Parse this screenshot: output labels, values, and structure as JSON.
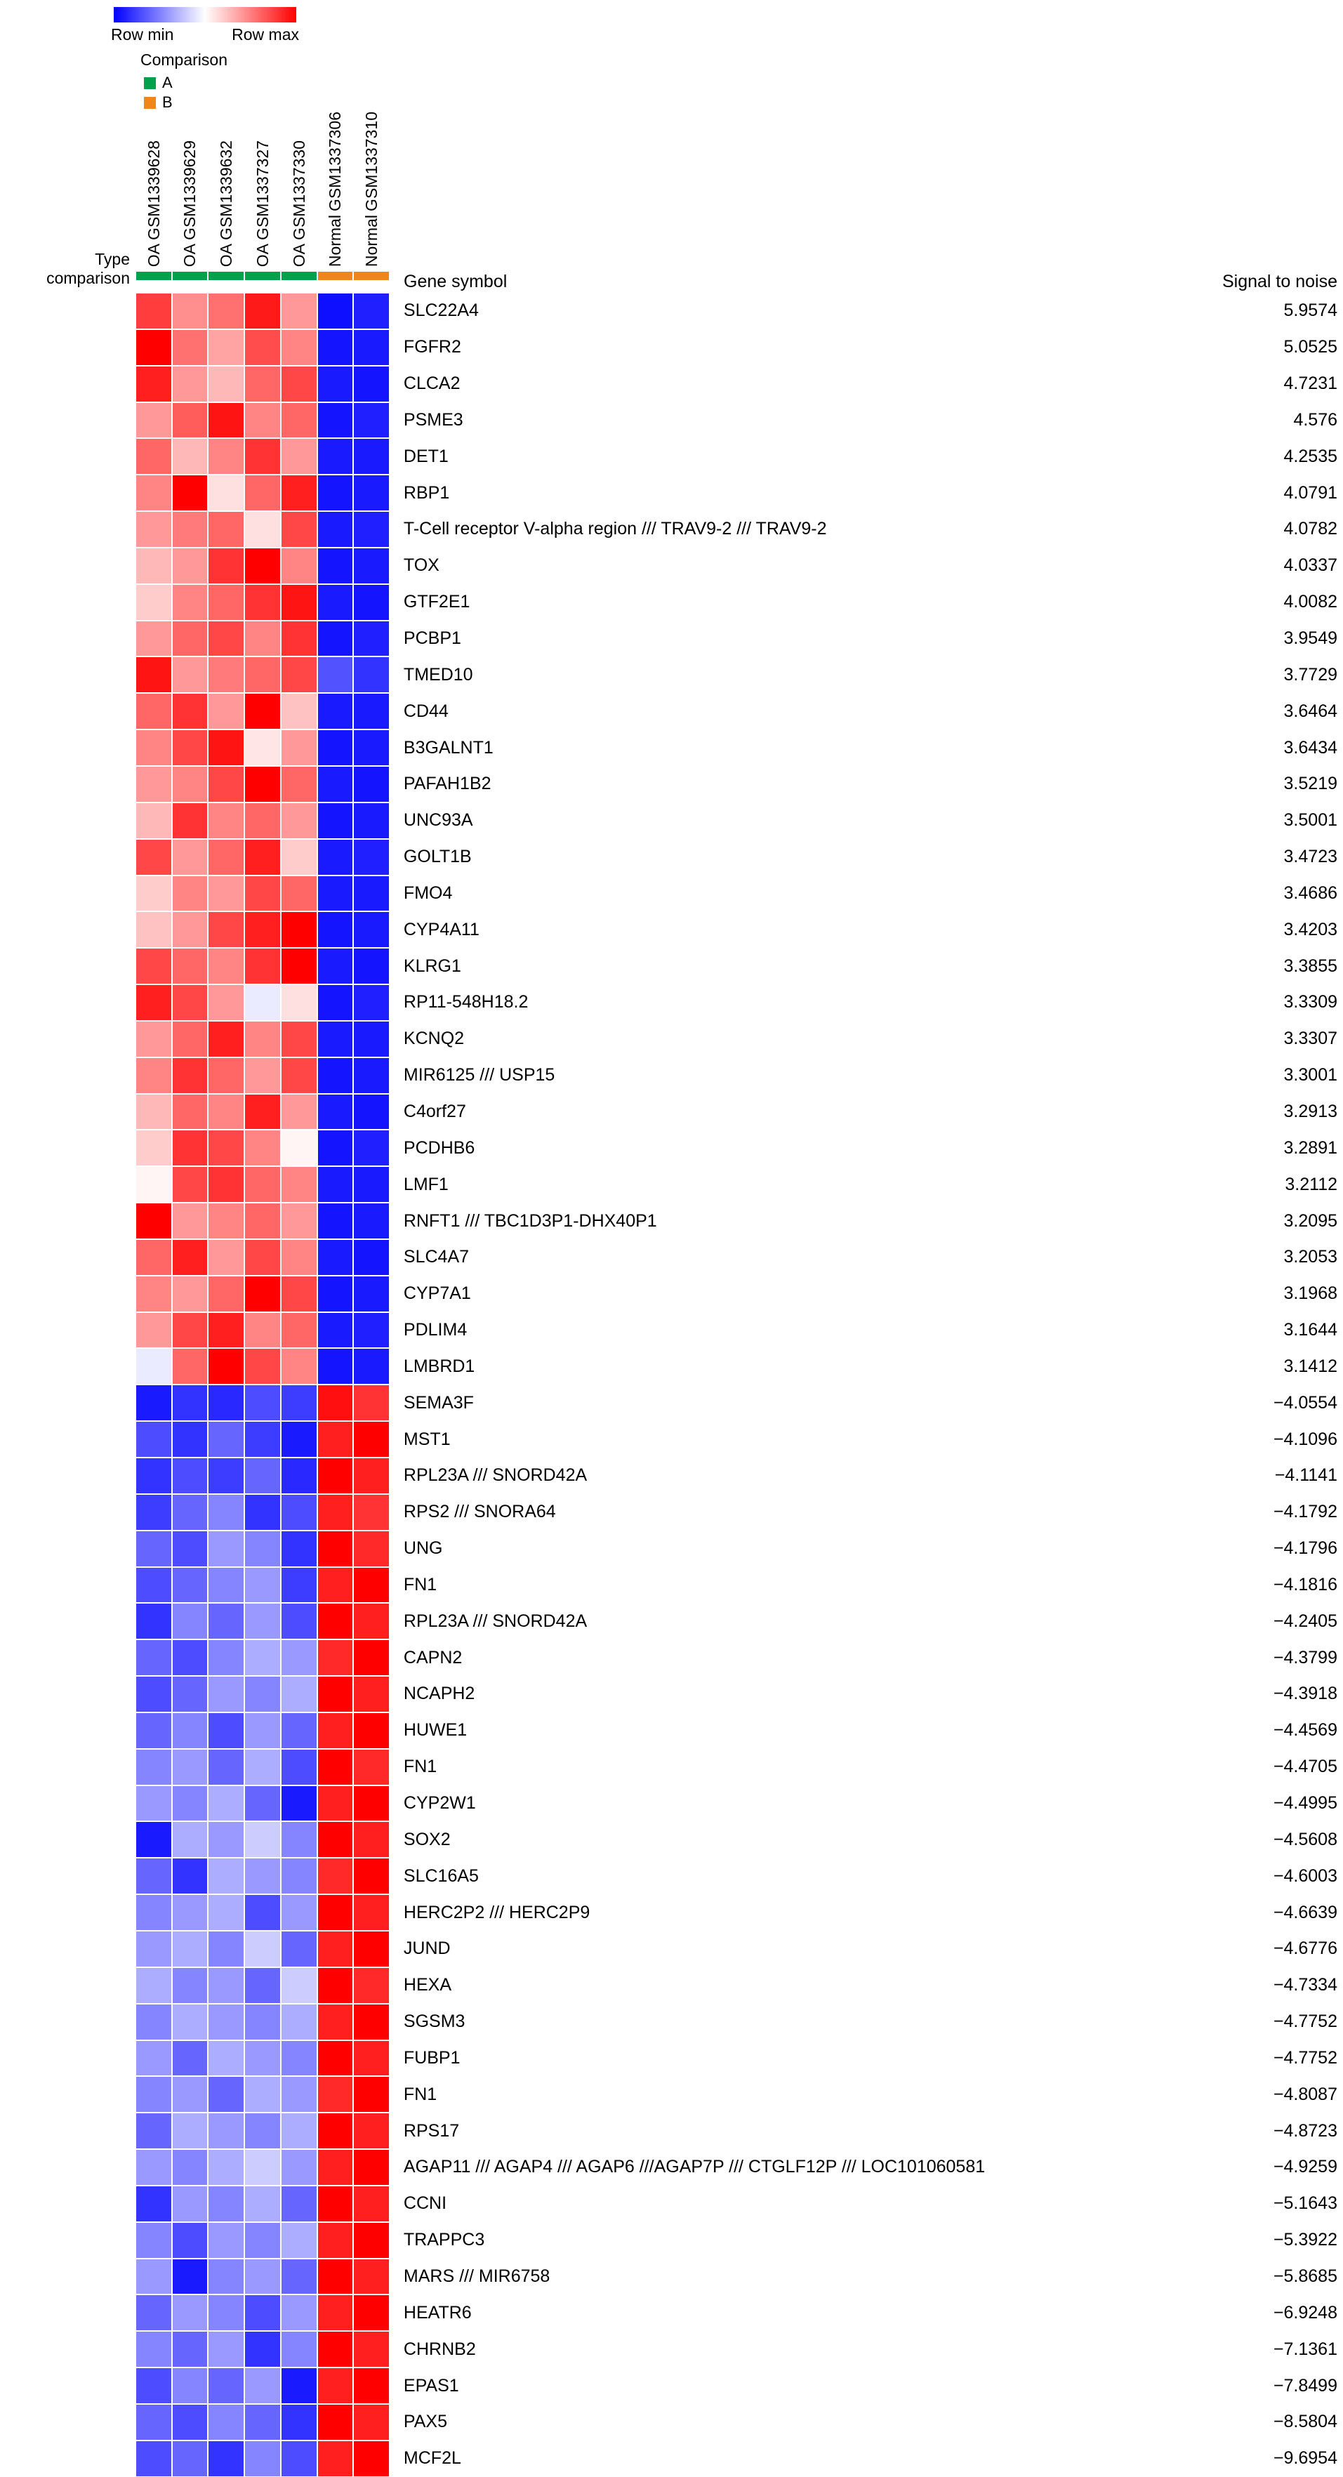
{
  "legend": {
    "row_min": "Row min",
    "row_max": "Row max",
    "comparison_title": "Comparison",
    "items": [
      {
        "label": "A",
        "color": "#00a14b"
      },
      {
        "label": "B",
        "color": "#f08519"
      }
    ]
  },
  "labels": {
    "gene_symbol_header": "Gene symbol",
    "signal_header": "Signal to noise",
    "type_row_label": "Type",
    "comparison_row_label": "comparison"
  },
  "chart_data": {
    "type": "heatmap",
    "title": "",
    "colormap": {
      "min": "#0000ff",
      "mid": "#ffffff",
      "max": "#ff0000",
      "min_label": "Row min",
      "max_label": "Row max",
      "scale": "row-normalized 0=row min, 1=row max"
    },
    "legend_position": "top-left",
    "columns": [
      {
        "id": "GSM1339628",
        "type": "OA",
        "comparison": "A"
      },
      {
        "id": "GSM1339629",
        "type": "OA",
        "comparison": "A"
      },
      {
        "id": "GSM1339632",
        "type": "OA",
        "comparison": "A"
      },
      {
        "id": "GSM1337327",
        "type": "OA",
        "comparison": "A"
      },
      {
        "id": "GSM1337330",
        "type": "OA",
        "comparison": "A"
      },
      {
        "id": "GSM1337306",
        "type": "Normal",
        "comparison": "B"
      },
      {
        "id": "GSM1337310",
        "type": "Normal",
        "comparison": "B"
      }
    ],
    "rows": [
      {
        "gene": "SLC22A4",
        "signal": "5.9574",
        "values": [
          0.88,
          0.72,
          0.78,
          0.95,
          0.7,
          0.03,
          0.06
        ]
      },
      {
        "gene": "FGFR2",
        "signal": "5.0525",
        "values": [
          1.0,
          0.78,
          0.68,
          0.85,
          0.74,
          0.04,
          0.05
        ]
      },
      {
        "gene": "CLCA2",
        "signal": "4.7231",
        "values": [
          0.94,
          0.7,
          0.64,
          0.8,
          0.86,
          0.05,
          0.04
        ]
      },
      {
        "gene": "PSME3",
        "signal": "4.576",
        "values": [
          0.7,
          0.82,
          0.96,
          0.74,
          0.8,
          0.04,
          0.06
        ]
      },
      {
        "gene": "DET1",
        "signal": "4.2535",
        "values": [
          0.8,
          0.64,
          0.74,
          0.9,
          0.7,
          0.05,
          0.05
        ]
      },
      {
        "gene": "RBP1",
        "signal": "4.0791",
        "values": [
          0.74,
          1.0,
          0.56,
          0.8,
          0.94,
          0.04,
          0.05
        ]
      },
      {
        "gene": "T-Cell receptor V-alpha region /// TRAV9-2 /// TRAV9-2",
        "signal": "4.0782",
        "values": [
          0.7,
          0.76,
          0.8,
          0.56,
          0.86,
          0.05,
          0.06
        ]
      },
      {
        "gene": "TOX",
        "signal": "4.0337",
        "values": [
          0.64,
          0.7,
          0.9,
          1.0,
          0.74,
          0.04,
          0.05
        ]
      },
      {
        "gene": "GTF2E1",
        "signal": "4.0082",
        "values": [
          0.6,
          0.74,
          0.8,
          0.9,
          0.96,
          0.05,
          0.04
        ]
      },
      {
        "gene": "PCBP1",
        "signal": "3.9549",
        "values": [
          0.7,
          0.8,
          0.86,
          0.74,
          0.9,
          0.04,
          0.06
        ]
      },
      {
        "gene": "TMED10",
        "signal": "3.7729",
        "values": [
          0.96,
          0.7,
          0.76,
          0.8,
          0.86,
          0.16,
          0.1
        ]
      },
      {
        "gene": "CD44",
        "signal": "3.6464",
        "values": [
          0.8,
          0.9,
          0.7,
          1.0,
          0.62,
          0.05,
          0.05
        ]
      },
      {
        "gene": "B3GALNT1",
        "signal": "3.6434",
        "values": [
          0.74,
          0.86,
          0.96,
          0.55,
          0.7,
          0.04,
          0.05
        ]
      },
      {
        "gene": "PAFAH1B2",
        "signal": "3.5219",
        "values": [
          0.7,
          0.74,
          0.86,
          1.0,
          0.8,
          0.05,
          0.04
        ]
      },
      {
        "gene": "UNC93A",
        "signal": "3.5001",
        "values": [
          0.64,
          0.9,
          0.74,
          0.8,
          0.7,
          0.04,
          0.05
        ]
      },
      {
        "gene": "GOLT1B",
        "signal": "3.4723",
        "values": [
          0.86,
          0.7,
          0.8,
          0.94,
          0.6,
          0.05,
          0.06
        ]
      },
      {
        "gene": "FMO4",
        "signal": "3.4686",
        "values": [
          0.6,
          0.74,
          0.7,
          0.86,
          0.8,
          0.05,
          0.05
        ]
      },
      {
        "gene": "CYP4A11",
        "signal": "3.4203",
        "values": [
          0.62,
          0.7,
          0.86,
          0.94,
          1.0,
          0.04,
          0.05
        ]
      },
      {
        "gene": "KLRG1",
        "signal": "3.3855",
        "values": [
          0.86,
          0.8,
          0.74,
          0.9,
          1.0,
          0.05,
          0.04
        ]
      },
      {
        "gene": "RP11-548H18.2",
        "signal": "3.3309",
        "values": [
          0.94,
          0.86,
          0.7,
          0.46,
          0.56,
          0.04,
          0.06
        ]
      },
      {
        "gene": "KCNQ2",
        "signal": "3.3307",
        "values": [
          0.7,
          0.8,
          0.94,
          0.74,
          0.86,
          0.05,
          0.05
        ]
      },
      {
        "gene": "MIR6125 /// USP15",
        "signal": "3.3001",
        "values": [
          0.74,
          0.9,
          0.8,
          0.7,
          0.86,
          0.04,
          0.05
        ]
      },
      {
        "gene": "C4orf27",
        "signal": "3.2913",
        "values": [
          0.64,
          0.8,
          0.74,
          0.94,
          0.7,
          0.05,
          0.04
        ]
      },
      {
        "gene": "PCDHB6",
        "signal": "3.2891",
        "values": [
          0.6,
          0.9,
          0.86,
          0.74,
          0.52,
          0.04,
          0.06
        ]
      },
      {
        "gene": "LMF1",
        "signal": "3.2112",
        "values": [
          0.52,
          0.86,
          0.9,
          0.8,
          0.74,
          0.05,
          0.05
        ]
      },
      {
        "gene": "RNFT1 /// TBC1D3P1-DHX40P1",
        "signal": "3.2095",
        "values": [
          1.0,
          0.7,
          0.74,
          0.8,
          0.7,
          0.04,
          0.05
        ]
      },
      {
        "gene": "SLC4A7",
        "signal": "3.2053",
        "values": [
          0.8,
          0.94,
          0.7,
          0.86,
          0.74,
          0.05,
          0.04
        ]
      },
      {
        "gene": "CYP7A1",
        "signal": "3.1968",
        "values": [
          0.74,
          0.7,
          0.8,
          1.0,
          0.86,
          0.04,
          0.05
        ]
      },
      {
        "gene": "PDLIM4",
        "signal": "3.1644",
        "values": [
          0.7,
          0.86,
          0.94,
          0.74,
          0.8,
          0.05,
          0.06
        ]
      },
      {
        "gene": "LMBRD1",
        "signal": "3.1412",
        "values": [
          0.46,
          0.8,
          1.0,
          0.86,
          0.74,
          0.04,
          0.05
        ]
      },
      {
        "gene": "SEMA3F",
        "signal": "−4.0554",
        "values": [
          0.05,
          0.1,
          0.08,
          0.15,
          0.12,
          0.97,
          0.9
        ]
      },
      {
        "gene": "MST1",
        "signal": "−4.1096",
        "values": [
          0.15,
          0.1,
          0.2,
          0.12,
          0.05,
          0.94,
          1.0
        ]
      },
      {
        "gene": "RPL23A /// SNORD42A",
        "signal": "−4.1141",
        "values": [
          0.1,
          0.15,
          0.12,
          0.2,
          0.08,
          1.0,
          0.94
        ]
      },
      {
        "gene": "RPS2 /// SNORA64",
        "signal": "−4.1792",
        "values": [
          0.12,
          0.2,
          0.26,
          0.1,
          0.15,
          0.94,
          0.9
        ]
      },
      {
        "gene": "UNG",
        "signal": "−4.1796",
        "values": [
          0.2,
          0.15,
          0.3,
          0.26,
          0.1,
          1.0,
          0.92
        ]
      },
      {
        "gene": "FN1",
        "signal": "−4.1816",
        "values": [
          0.15,
          0.2,
          0.26,
          0.3,
          0.12,
          0.94,
          1.0
        ]
      },
      {
        "gene": "RPL23A /// SNORD42A",
        "signal": "−4.2405",
        "values": [
          0.1,
          0.26,
          0.2,
          0.3,
          0.15,
          1.0,
          0.94
        ]
      },
      {
        "gene": "CAPN2",
        "signal": "−4.3799",
        "values": [
          0.2,
          0.15,
          0.26,
          0.34,
          0.3,
          0.92,
          1.0
        ]
      },
      {
        "gene": "NCAPH2",
        "signal": "−4.3918",
        "values": [
          0.15,
          0.2,
          0.3,
          0.26,
          0.34,
          1.0,
          0.94
        ]
      },
      {
        "gene": "HUWE1",
        "signal": "−4.4569",
        "values": [
          0.2,
          0.26,
          0.15,
          0.3,
          0.2,
          0.94,
          1.0
        ]
      },
      {
        "gene": "FN1",
        "signal": "−4.4705",
        "values": [
          0.26,
          0.3,
          0.2,
          0.34,
          0.15,
          1.0,
          0.92
        ]
      },
      {
        "gene": "CYP2W1",
        "signal": "−4.4995",
        "values": [
          0.3,
          0.26,
          0.34,
          0.2,
          0.05,
          0.94,
          1.0
        ]
      },
      {
        "gene": "SOX2",
        "signal": "−4.5608",
        "values": [
          0.05,
          0.34,
          0.3,
          0.4,
          0.26,
          1.0,
          0.94
        ]
      },
      {
        "gene": "SLC16A5",
        "signal": "−4.6003",
        "values": [
          0.2,
          0.1,
          0.34,
          0.3,
          0.26,
          0.92,
          1.0
        ]
      },
      {
        "gene": "HERC2P2 /// HERC2P9",
        "signal": "−4.6639",
        "values": [
          0.26,
          0.3,
          0.34,
          0.15,
          0.3,
          1.0,
          0.94
        ]
      },
      {
        "gene": "JUND",
        "signal": "−4.6776",
        "values": [
          0.3,
          0.34,
          0.26,
          0.4,
          0.2,
          0.94,
          1.0
        ]
      },
      {
        "gene": "HEXA",
        "signal": "−4.7334",
        "values": [
          0.34,
          0.26,
          0.3,
          0.2,
          0.4,
          1.0,
          0.92
        ]
      },
      {
        "gene": "SGSM3",
        "signal": "−4.7752",
        "values": [
          0.26,
          0.34,
          0.3,
          0.26,
          0.34,
          0.94,
          1.0
        ]
      },
      {
        "gene": "FUBP1",
        "signal": "−4.7752",
        "values": [
          0.3,
          0.2,
          0.34,
          0.3,
          0.26,
          1.0,
          0.94
        ]
      },
      {
        "gene": "FN1",
        "signal": "−4.8087",
        "values": [
          0.26,
          0.3,
          0.2,
          0.34,
          0.3,
          0.92,
          1.0
        ]
      },
      {
        "gene": "RPS17",
        "signal": "−4.8723",
        "values": [
          0.2,
          0.34,
          0.3,
          0.26,
          0.34,
          1.0,
          0.94
        ]
      },
      {
        "gene": "AGAP11 /// AGAP4 /// AGAP6 ///AGAP7P /// CTGLF12P /// LOC101060581",
        "signal": "−4.9259",
        "values": [
          0.3,
          0.26,
          0.34,
          0.4,
          0.3,
          0.94,
          1.0
        ]
      },
      {
        "gene": "CCNI",
        "signal": "−5.1643",
        "values": [
          0.1,
          0.3,
          0.26,
          0.34,
          0.2,
          1.0,
          0.94
        ]
      },
      {
        "gene": "TRAPPC3",
        "signal": "−5.3922",
        "values": [
          0.26,
          0.15,
          0.3,
          0.26,
          0.34,
          0.94,
          1.0
        ]
      },
      {
        "gene": "MARS /// MIR6758",
        "signal": "−5.8685",
        "values": [
          0.3,
          0.05,
          0.26,
          0.3,
          0.2,
          1.0,
          0.94
        ]
      },
      {
        "gene": "HEATR6",
        "signal": "−6.9248",
        "values": [
          0.2,
          0.3,
          0.26,
          0.15,
          0.3,
          0.94,
          1.0
        ]
      },
      {
        "gene": "CHRNB2",
        "signal": "−7.1361",
        "values": [
          0.26,
          0.2,
          0.3,
          0.1,
          0.26,
          1.0,
          0.94
        ]
      },
      {
        "gene": "EPAS1",
        "signal": "−7.8499",
        "values": [
          0.15,
          0.26,
          0.2,
          0.3,
          0.05,
          0.94,
          1.0
        ]
      },
      {
        "gene": "PAX5",
        "signal": "−8.5804",
        "values": [
          0.2,
          0.15,
          0.26,
          0.2,
          0.1,
          1.0,
          0.94
        ]
      },
      {
        "gene": "MCF2L",
        "signal": "−9.6954",
        "values": [
          0.15,
          0.2,
          0.1,
          0.26,
          0.15,
          0.94,
          1.0
        ]
      }
    ]
  }
}
